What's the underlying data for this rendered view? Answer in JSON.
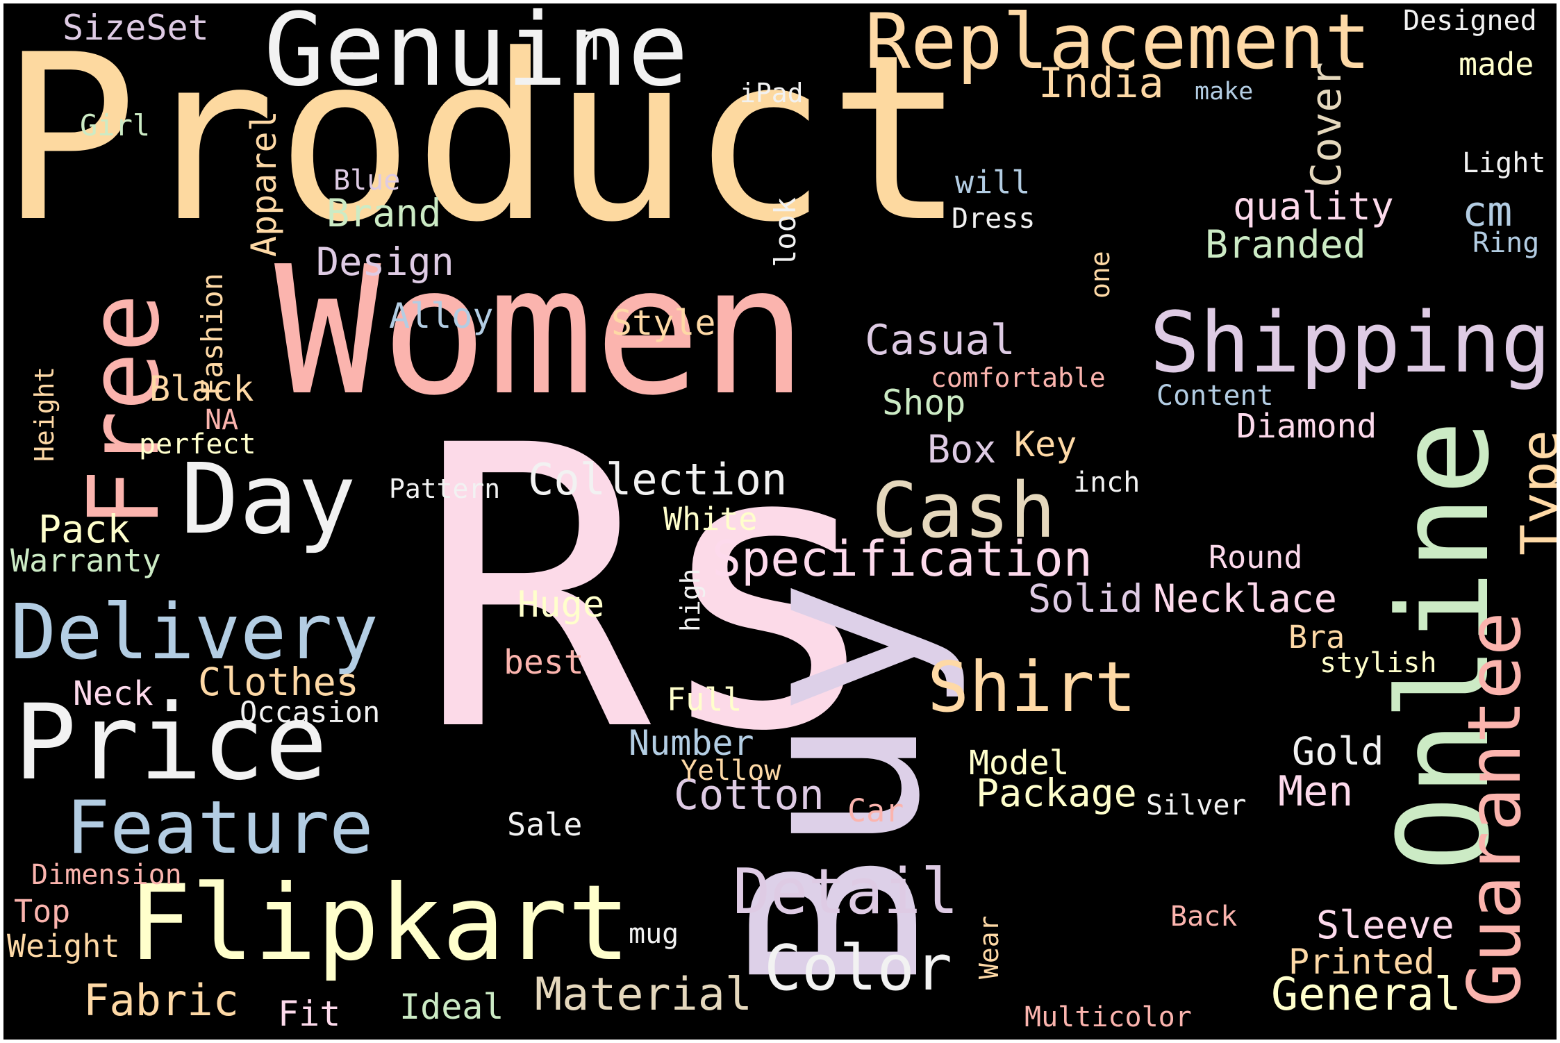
{
  "background": "#000000",
  "words": [
    {
      "id": "product",
      "text": "Product",
      "color": "#fdd9a0"
    },
    {
      "id": "rs",
      "text": "Rs",
      "color": "#fcdae8"
    },
    {
      "id": "buy",
      "text": "Buy",
      "color": "#ddd0e8"
    },
    {
      "id": "women",
      "text": "Women",
      "color": "#fbb4ae"
    },
    {
      "id": "online",
      "text": "Online",
      "color": "#ccebc5"
    },
    {
      "id": "genuine",
      "text": "Genuine",
      "color": "#f2f2f2"
    },
    {
      "id": "replacement",
      "text": "Replacement",
      "color": "#fed9a6"
    },
    {
      "id": "free",
      "text": "Free",
      "color": "#fbb4ae"
    },
    {
      "id": "flipkart",
      "text": "Flipkart",
      "color": "#ffffcc"
    },
    {
      "id": "price",
      "text": "Price",
      "color": "#f2f2f2"
    },
    {
      "id": "delivery",
      "text": "Delivery",
      "color": "#b3cde3"
    },
    {
      "id": "day",
      "text": "Day",
      "color": "#f2f2f2"
    },
    {
      "id": "shipping",
      "text": "Shipping",
      "color": "#decbe4"
    },
    {
      "id": "cash",
      "text": "Cash",
      "color": "#e5d8bd"
    },
    {
      "id": "guarantee",
      "text": "Guarantee",
      "color": "#fbb4ae"
    },
    {
      "id": "feature",
      "text": "Feature",
      "color": "#b3cde3"
    },
    {
      "id": "shirt",
      "text": "Shirt",
      "color": "#fed9a6"
    },
    {
      "id": "color",
      "text": "Color",
      "color": "#f2f2f2"
    },
    {
      "id": "detail",
      "text": "Detail",
      "color": "#decbe4"
    },
    {
      "id": "specification",
      "text": "Specification",
      "color": "#fddaec"
    },
    {
      "id": "collection",
      "text": "Collection",
      "color": "#f2f2f2"
    },
    {
      "id": "type",
      "text": "Type",
      "color": "#fed9a6"
    },
    {
      "id": "material",
      "text": "Material",
      "color": "#e5d8bd"
    },
    {
      "id": "general",
      "text": "General",
      "color": "#ffffcc"
    },
    {
      "id": "india",
      "text": "India",
      "color": "#fed9a6"
    },
    {
      "id": "casual",
      "text": "Casual",
      "color": "#decbe4"
    },
    {
      "id": "design",
      "text": "Design",
      "color": "#decbe4"
    },
    {
      "id": "brand",
      "text": "Brand",
      "color": "#ccebc5"
    },
    {
      "id": "branded",
      "text": "Branded",
      "color": "#ccebc5"
    },
    {
      "id": "quality",
      "text": "quality",
      "color": "#fddaec"
    },
    {
      "id": "cover",
      "text": "Cover",
      "color": "#e5d8bd"
    },
    {
      "id": "cm",
      "text": "cm",
      "color": "#b3cde3"
    },
    {
      "id": "necklace",
      "text": "Necklace",
      "color": "#fddaec"
    },
    {
      "id": "solid",
      "text": "Solid",
      "color": "#decbe4"
    },
    {
      "id": "cotton",
      "text": "Cotton",
      "color": "#decbe4"
    },
    {
      "id": "package",
      "text": "Package",
      "color": "#ffffcc"
    },
    {
      "id": "men",
      "text": "Men",
      "color": "#fddaec"
    },
    {
      "id": "gold",
      "text": "Gold",
      "color": "#f2f2f2"
    },
    {
      "id": "clothes",
      "text": "Clothes",
      "color": "#fed9a6"
    },
    {
      "id": "fabric",
      "text": "Fabric",
      "color": "#fed9a6"
    },
    {
      "id": "pack",
      "text": "Pack",
      "color": "#ffffcc"
    },
    {
      "id": "black",
      "text": "Black",
      "color": "#fed9a6"
    },
    {
      "id": "apparel",
      "text": "Apparel",
      "color": "#fed9a6"
    },
    {
      "id": "style",
      "text": "Style",
      "color": "#fed9a6"
    },
    {
      "id": "alloy",
      "text": "Alloy",
      "color": "#b3cde3"
    },
    {
      "id": "box",
      "text": "Box",
      "color": "#decbe4"
    },
    {
      "id": "key",
      "text": "Key",
      "color": "#fed9a6"
    },
    {
      "id": "shop",
      "text": "Shop",
      "color": "#ccebc5"
    },
    {
      "id": "diamond",
      "text": "Diamond",
      "color": "#fddaec"
    },
    {
      "id": "huge",
      "text": "Huge",
      "color": "#ffffcc"
    },
    {
      "id": "sleeve",
      "text": "Sleeve",
      "color": "#fddaec"
    },
    {
      "id": "printed",
      "text": "Printed",
      "color": "#fed9a6"
    },
    {
      "id": "number",
      "text": "Number",
      "color": "#b3cde3"
    },
    {
      "id": "model",
      "text": "Model",
      "color": "#ffffcc"
    },
    {
      "id": "neck",
      "text": "Neck",
      "color": "#fddaec"
    },
    {
      "id": "sizeset",
      "text": "SizeSet",
      "color": "#decbe4"
    },
    {
      "id": "t",
      "text": "T",
      "color": "#f2f2f2"
    },
    {
      "id": "designed",
      "text": "Designed",
      "color": "#f2f2f2"
    },
    {
      "id": "made",
      "text": "made",
      "color": "#ffffcc"
    },
    {
      "id": "ipad",
      "text": "iPad",
      "color": "#f2f2f2"
    },
    {
      "id": "make",
      "text": "make",
      "color": "#b3cde3"
    },
    {
      "id": "girl",
      "text": "Girl",
      "color": "#ccebc5"
    },
    {
      "id": "light",
      "text": "Light",
      "color": "#f2f2f2"
    },
    {
      "id": "blue",
      "text": "Blue",
      "color": "#decbe4"
    },
    {
      "id": "will",
      "text": "will",
      "color": "#b3cde3"
    },
    {
      "id": "dress",
      "text": "Dress",
      "color": "#f2f2f2"
    },
    {
      "id": "ring",
      "text": "Ring",
      "color": "#b3cde3"
    },
    {
      "id": "look",
      "text": "look",
      "color": "#f2f2f2"
    },
    {
      "id": "one",
      "text": "one",
      "color": "#fed9a6"
    },
    {
      "id": "fashion",
      "text": "Fashion",
      "color": "#fed9a6"
    },
    {
      "id": "height",
      "text": "Height",
      "color": "#fed9a6"
    },
    {
      "id": "na",
      "text": "NA",
      "color": "#fbb4ae"
    },
    {
      "id": "perfect",
      "text": "perfect",
      "color": "#ffffcc"
    },
    {
      "id": "comfortable",
      "text": "comfortable",
      "color": "#fbb4ae"
    },
    {
      "id": "content",
      "text": "Content",
      "color": "#b3cde3"
    },
    {
      "id": "pattern",
      "text": "Pattern",
      "color": "#f2f2f2"
    },
    {
      "id": "inch",
      "text": "inch",
      "color": "#f2f2f2"
    },
    {
      "id": "white",
      "text": "White",
      "color": "#ffffcc"
    },
    {
      "id": "warranty",
      "text": "Warranty",
      "color": "#ccebc5"
    },
    {
      "id": "round",
      "text": "Round",
      "color": "#fddaec"
    },
    {
      "id": "high",
      "text": "high",
      "color": "#f2f2f2"
    },
    {
      "id": "best",
      "text": "best",
      "color": "#fbb4ae"
    },
    {
      "id": "bra",
      "text": "Bra",
      "color": "#fed9a6"
    },
    {
      "id": "stylish",
      "text": "stylish",
      "color": "#ffffcc"
    },
    {
      "id": "full",
      "text": "Full",
      "color": "#ffffcc"
    },
    {
      "id": "occasion",
      "text": "Occasion",
      "color": "#f2f2f2"
    },
    {
      "id": "yellow",
      "text": "Yellow",
      "color": "#fed9a6"
    },
    {
      "id": "car",
      "text": "Car",
      "color": "#fbb4ae"
    },
    {
      "id": "silver",
      "text": "Silver",
      "color": "#f2f2f2"
    },
    {
      "id": "sale",
      "text": "Sale",
      "color": "#f2f2f2"
    },
    {
      "id": "dimension",
      "text": "Dimension",
      "color": "#fbb4ae"
    },
    {
      "id": "top",
      "text": "Top",
      "color": "#fbb4ae"
    },
    {
      "id": "weight",
      "text": "Weight",
      "color": "#fed9a6"
    },
    {
      "id": "mug",
      "text": "mug",
      "color": "#f2f2f2"
    },
    {
      "id": "back",
      "text": "Back",
      "color": "#fbb4ae"
    },
    {
      "id": "wear",
      "text": "Wear",
      "color": "#fed9a6"
    },
    {
      "id": "fit",
      "text": "Fit",
      "color": "#fddaec"
    },
    {
      "id": "ideal",
      "text": "Ideal",
      "color": "#ccebc5"
    },
    {
      "id": "multicolor",
      "text": "Multicolor",
      "color": "#fbb4ae"
    }
  ]
}
